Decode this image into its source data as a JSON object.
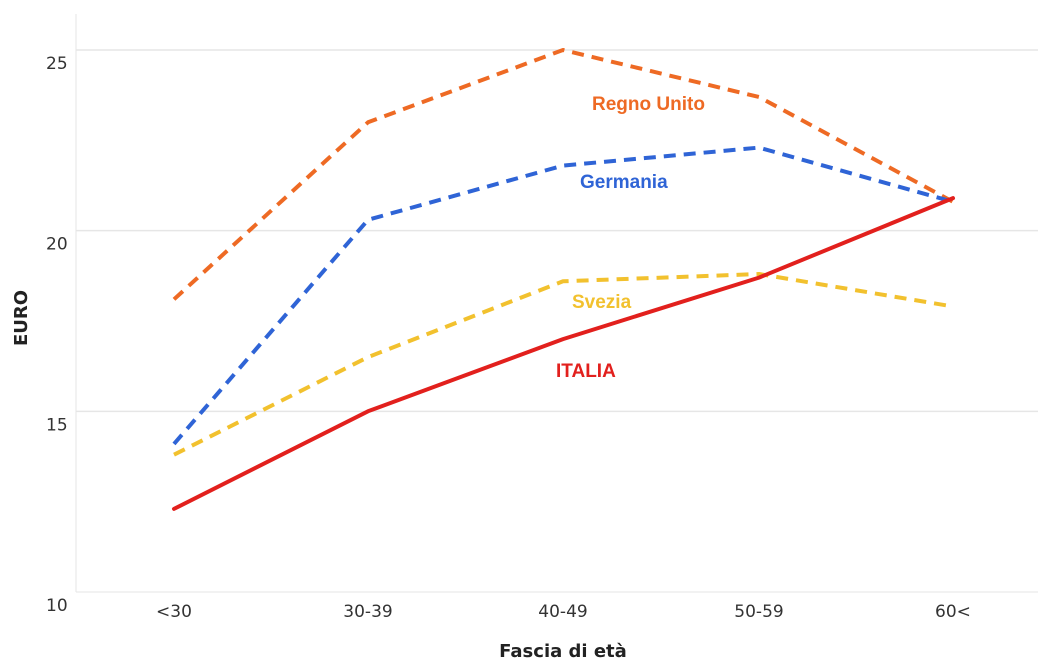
{
  "chart_data": {
    "type": "line",
    "xlabel": "Fascia di età",
    "ylabel": "EURO",
    "categories": [
      "<30",
      "30-39",
      "40-49",
      "50-59",
      "60<"
    ],
    "yticks": [
      "10",
      "15",
      "20",
      "25"
    ],
    "ylim": [
      10,
      26
    ],
    "grid": "horizontal",
    "series": [
      {
        "name": "Regno Unito",
        "color": "#ee6a24",
        "style": "dashed",
        "values": [
          18.1,
          23.0,
          25.0,
          23.7,
          20.8
        ]
      },
      {
        "name": "Germania",
        "color": "#2f64d6",
        "style": "dashed",
        "values": [
          14.1,
          20.3,
          21.8,
          22.3,
          20.8
        ]
      },
      {
        "name": "Svezia",
        "color": "#f2c12e",
        "style": "dashed",
        "values": [
          13.8,
          16.5,
          18.6,
          18.8,
          17.9
        ]
      },
      {
        "name": "ITALIA",
        "color": "#e2201d",
        "style": "solid",
        "values": [
          12.3,
          15.0,
          17.0,
          18.7,
          20.9
        ]
      }
    ]
  }
}
